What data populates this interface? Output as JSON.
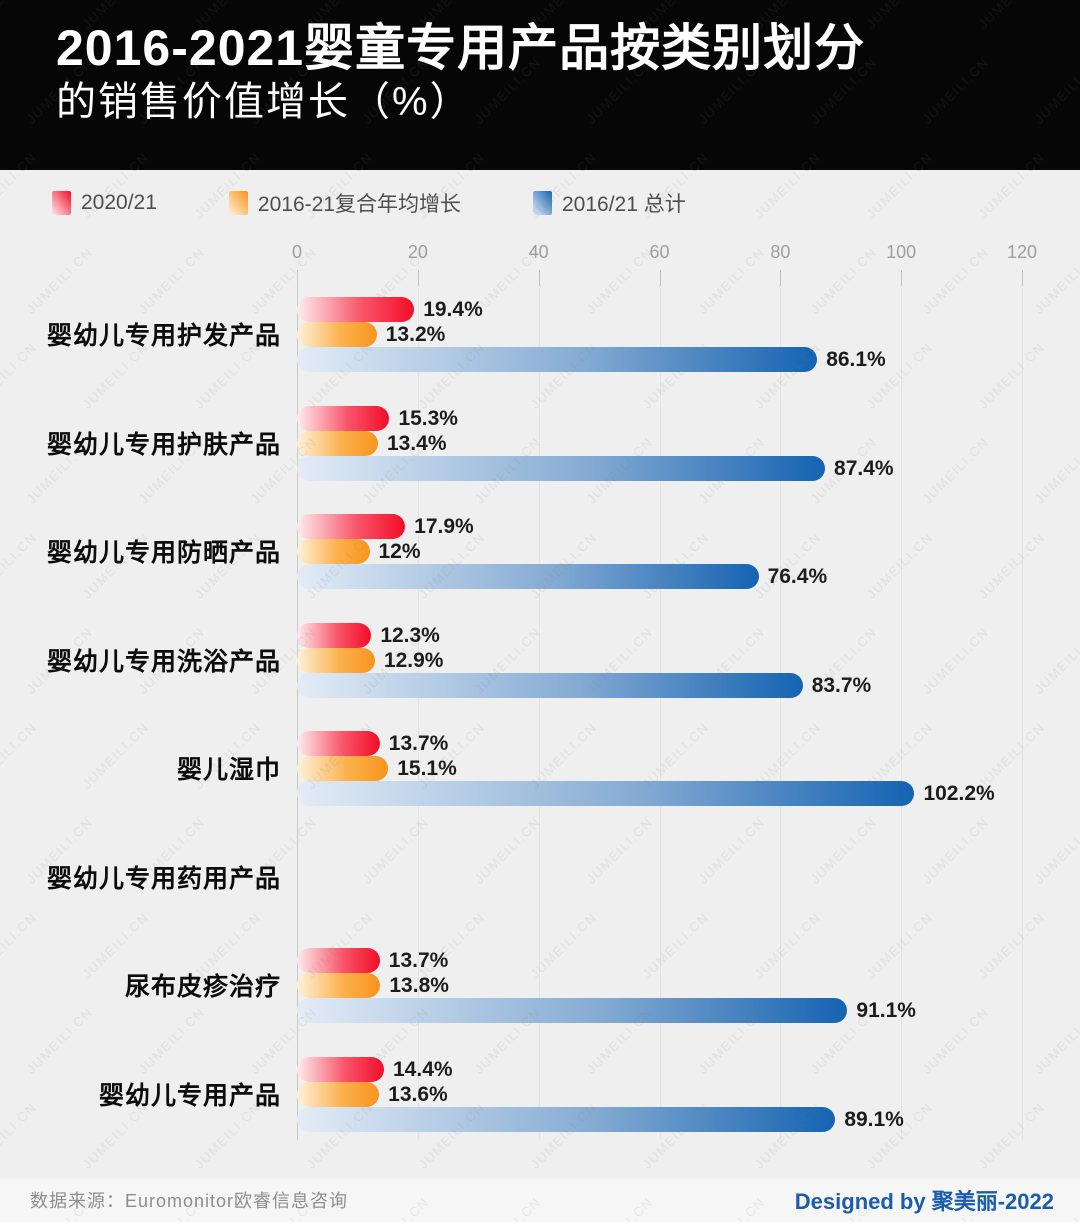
{
  "header": {
    "title_line1": "2016-2021婴童专用产品按类别划分",
    "title_line2": "的销售价值增长（%）"
  },
  "chart_data": {
    "type": "bar",
    "orientation": "horizontal",
    "title": "2016-2021婴童专用产品按类别划分的销售价值增长（%）",
    "xlim": [
      0,
      120
    ],
    "x_ticks": [
      0,
      20,
      40,
      60,
      80,
      100,
      120
    ],
    "grid": true,
    "legend_position": "top",
    "categories": [
      "婴幼儿专用护发产品",
      "婴幼儿专用护肤产品",
      "婴幼儿专用防晒产品",
      "婴幼儿专用洗浴产品",
      "婴儿湿巾",
      "婴幼儿专用药用产品",
      "尿布皮疹治疗",
      "婴幼儿专用产品"
    ],
    "series": [
      {
        "key": "yoy-2020-21",
        "name": "2020/21",
        "color_from": "#fdedee",
        "color_mid": "#f9556b",
        "color_to": "#f20d28",
        "values": [
          19.4,
          15.3,
          17.9,
          12.3,
          13.7,
          null,
          13.7,
          14.4
        ],
        "labels": [
          "19.4%",
          "15.3%",
          "17.9%",
          "12.3%",
          "13.7%",
          "",
          "13.7%",
          "14.4%"
        ]
      },
      {
        "key": "cagr-2016-21",
        "name": "2016-21复合年均增长",
        "color_from": "#fdf2da",
        "color_mid": "#fbb14d",
        "color_to": "#f8941d",
        "values": [
          13.2,
          13.4,
          12,
          12.9,
          15.1,
          null,
          13.8,
          13.6
        ],
        "labels": [
          "13.2%",
          "13.4%",
          "12%",
          "12.9%",
          "15.1%",
          "",
          "13.8%",
          "13.6%"
        ]
      },
      {
        "key": "total-2016-21",
        "name": "2016/21 总计",
        "color_from": "#e3ecf6",
        "color_mid": "#85abd3",
        "color_to": "#1563b2",
        "values": [
          86.1,
          87.4,
          76.4,
          83.7,
          102.2,
          null,
          91.1,
          89.1
        ],
        "labels": [
          "86.1%",
          "87.4%",
          "76.4%",
          "83.7%",
          "102.2%",
          "",
          "91.1%",
          "89.1%"
        ]
      }
    ]
  },
  "footer": {
    "source": "数据来源：Euromonitor欧睿信息咨询",
    "credit": "Designed by 聚美丽-2022",
    "credit_color": "#1b5cad"
  },
  "watermark": {
    "text": "JUMEILI.CN"
  }
}
